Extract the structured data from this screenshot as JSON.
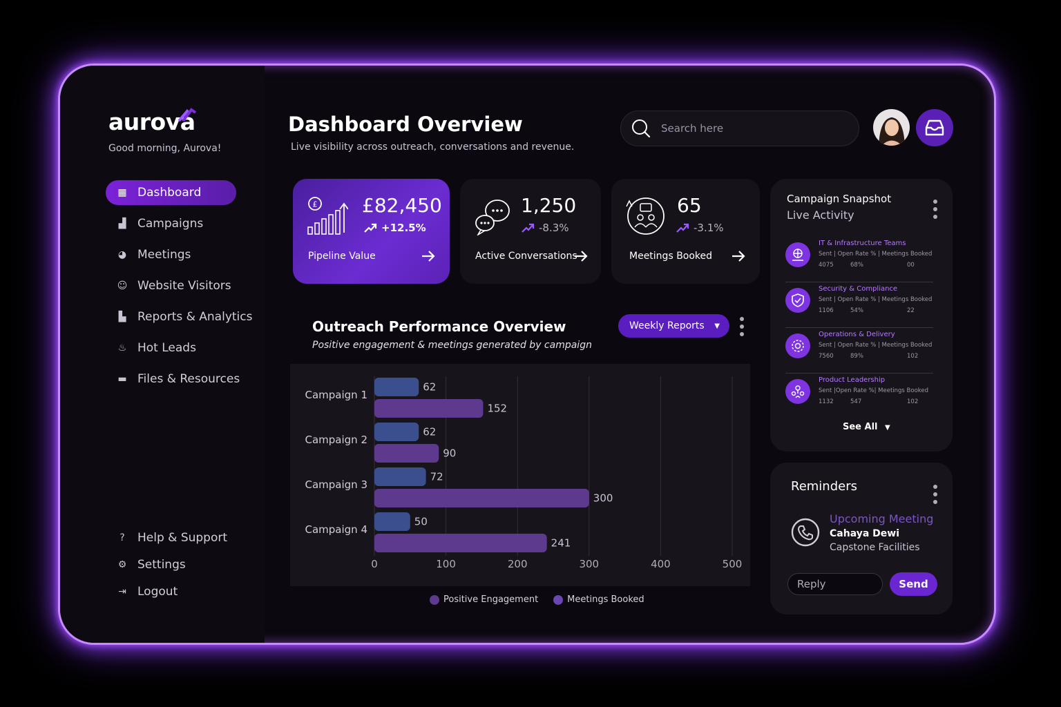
{
  "brand": {
    "name": "aurova",
    "greeting": "Good morning, Aurova!"
  },
  "nav": {
    "items": [
      {
        "label": "Dashboard",
        "icon": "grid-icon"
      },
      {
        "label": "Campaigns",
        "icon": "bar-chart-icon"
      },
      {
        "label": "Meetings",
        "icon": "pie-icon"
      },
      {
        "label": "Website Visitors",
        "icon": "users-icon"
      },
      {
        "label": "Reports & Analytics",
        "icon": "analytics-icon"
      },
      {
        "label": "Hot Leads",
        "icon": "flame-icon"
      },
      {
        "label": "Files & Resources",
        "icon": "folder-icon"
      }
    ],
    "bottom": [
      {
        "label": "Help & Support",
        "icon": "help-icon"
      },
      {
        "label": "Settings",
        "icon": "gear-icon"
      },
      {
        "label": "Logout",
        "icon": "logout-icon"
      }
    ]
  },
  "header": {
    "title": "Dashboard Overview",
    "subtitle": "Live visibility across outreach, conversations and revenue.",
    "search_placeholder": "Search here"
  },
  "stats": [
    {
      "value": "£82,450",
      "change": "+12.5%",
      "label": "Pipeline Value"
    },
    {
      "value": "1,250",
      "change": "-8.3%",
      "label": "Active Conversations"
    },
    {
      "value": "65",
      "change": "-3.1%",
      "label": "Meetings Booked"
    }
  ],
  "chart_section": {
    "title": "Outreach Performance Overview",
    "subtitle": "Positive engagement & meetings generated by campaign",
    "dropdown": "Weekly Reports"
  },
  "chart_data": {
    "type": "bar",
    "orientation": "horizontal",
    "categories": [
      "Campaign 1",
      "Campaign 2",
      "Campaign 3",
      "Campaign 4"
    ],
    "series": [
      {
        "name": "Positive Engagement",
        "values": [
          62,
          62,
          72,
          50
        ],
        "color": "#3b4f8f"
      },
      {
        "name": "Meetings Booked",
        "values": [
          152,
          90,
          300,
          241
        ],
        "color": "#5e3a8f"
      }
    ],
    "xlim": [
      0,
      500
    ],
    "xticks": [
      0,
      100,
      200,
      300,
      400,
      500
    ],
    "grid": true,
    "legend": "bottom"
  },
  "snapshot": {
    "title": "Campaign Snapshot",
    "subtitle": "Live Activity",
    "items": [
      {
        "name": "IT & Infrastructure Teams",
        "meta": "Sent | Open Rate % | Meetings Booked",
        "sent": "4075",
        "open": "68%",
        "booked": "00"
      },
      {
        "name": "Security & Compliance",
        "meta": "Sent | Open Rate % | Meetings Booked",
        "sent": "1106",
        "open": "54%",
        "booked": "22"
      },
      {
        "name": "Operations & Delivery",
        "meta": "Sent | Open Rate % | Meetings Booked",
        "sent": "7560",
        "open": "89%",
        "booked": "102"
      },
      {
        "name": "Product Leadership",
        "meta": "Sent |Open Rate %| Meetings Booked",
        "sent": "1132",
        "open": "547",
        "booked": "102"
      }
    ],
    "see_all": "See All"
  },
  "reminders": {
    "title": "Reminders",
    "label": "Upcoming Meeting",
    "name": "Cahaya Dewi",
    "company": "Capstone Facilities",
    "reply_placeholder": "Reply",
    "send_label": "Send"
  },
  "colors": {
    "accent": "#7b22d8",
    "glow": "#a855f7"
  }
}
